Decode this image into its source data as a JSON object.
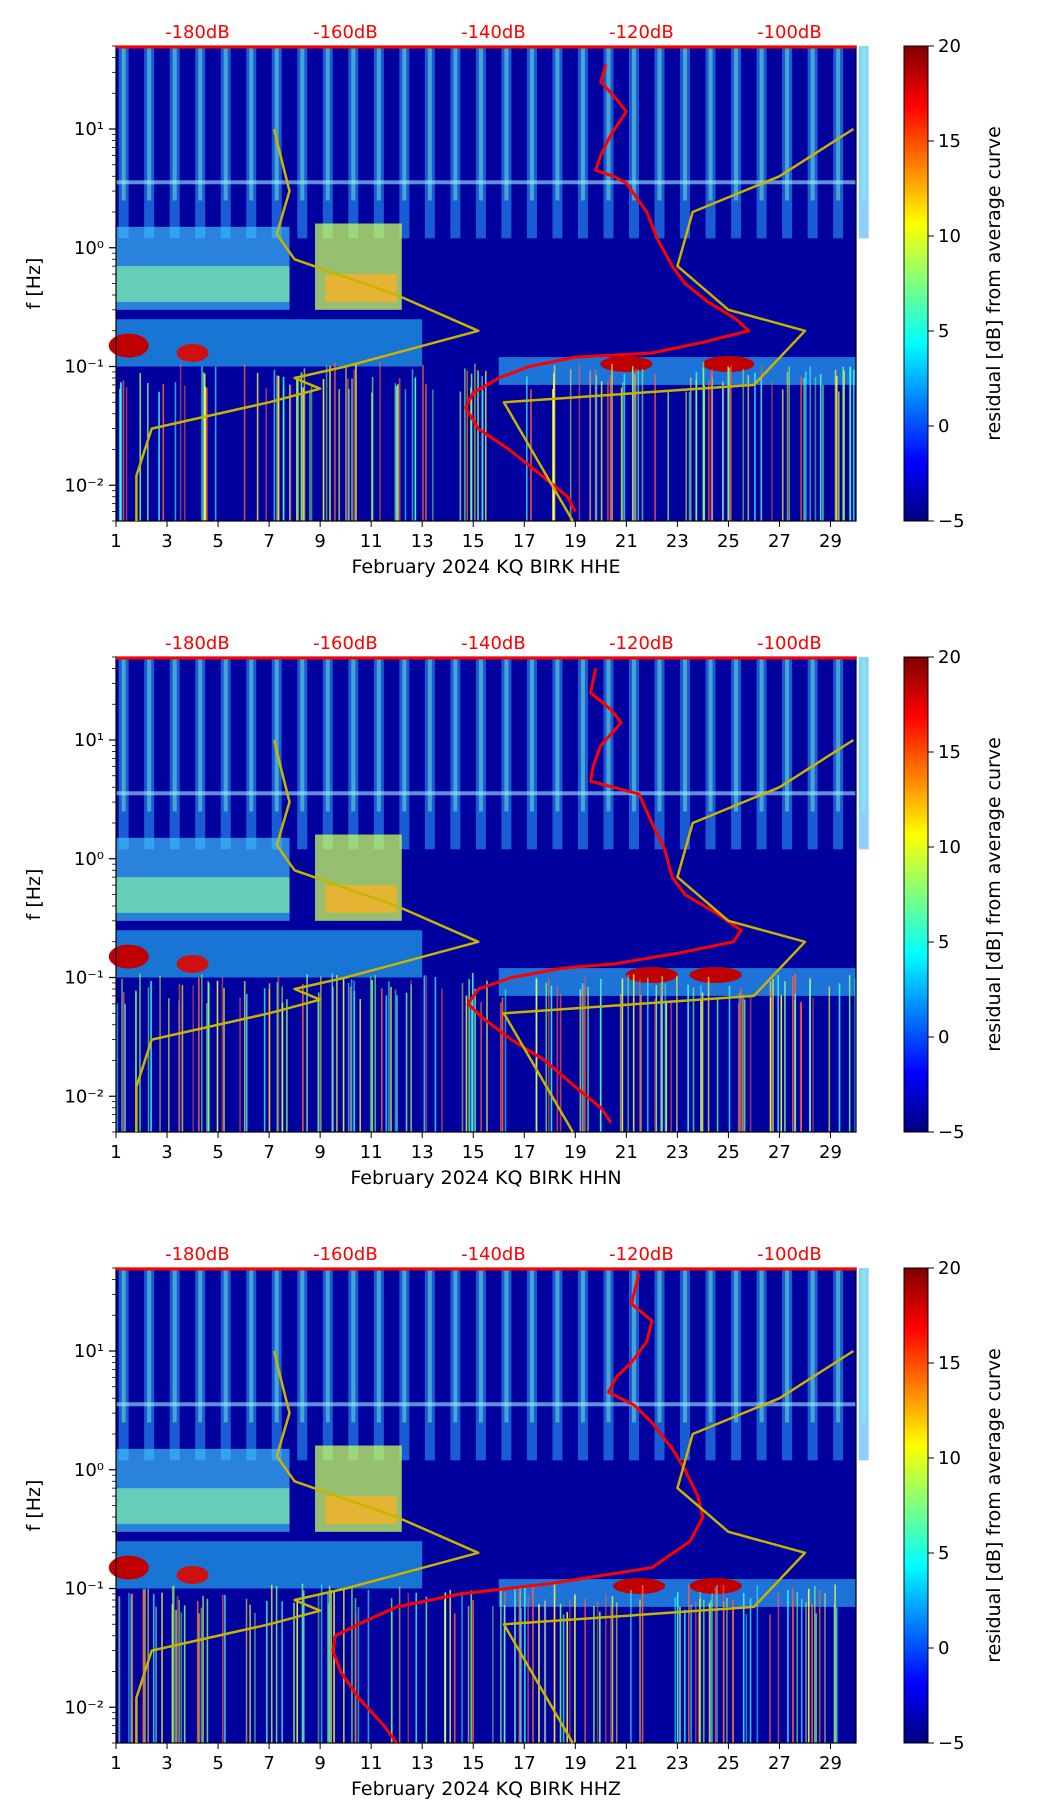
{
  "colors": {
    "pdf_curve": "#ff0000",
    "reference_curve": "#c8b400",
    "colormap": [
      "#00007f",
      "#0000ff",
      "#007fff",
      "#00ffff",
      "#7fff7f",
      "#ffff00",
      "#ff7f00",
      "#ff0000",
      "#7f0000"
    ]
  },
  "colorbar": {
    "label": "residual [dB] from average curve",
    "ticks": [
      "−5",
      "0",
      "5",
      "10",
      "15",
      "20"
    ],
    "min": -5,
    "max": 20
  },
  "chart_data": [
    {
      "type": "heatmap",
      "title": "",
      "xlabel": "February 2024 KQ BIRK  HHE",
      "ylabel": "f [Hz]",
      "yscale": "log",
      "ylim": [
        0.005,
        50
      ],
      "xlim": [
        1,
        30
      ],
      "x_ticks": [
        "1",
        "3",
        "5",
        "7",
        "9",
        "11",
        "13",
        "15",
        "17",
        "19",
        "21",
        "23",
        "25",
        "27",
        "29"
      ],
      "y_ticks": [
        "10⁻²",
        "10⁻¹",
        "10⁰",
        "10¹"
      ],
      "top_axis_labels": [
        "-180dB",
        "-160dB",
        "-140dB",
        "-120dB",
        "-100dB"
      ],
      "colorbar_range": [
        -5,
        20
      ],
      "features": {
        "lowband_start_day": 16,
        "strong_band_days": [
          21,
          25
        ]
      },
      "series": [
        {
          "color_key": "pdf_curve",
          "x": [
            20.2,
            20.0,
            20.6,
            21.0,
            20.4,
            20.0,
            19.8,
            20.5,
            21.0,
            21.8,
            22.2,
            22.8,
            23.3,
            24.2,
            25.3,
            25.8,
            24.0,
            22.0,
            19.0,
            17.2,
            16.0,
            15.0,
            14.7,
            15.2,
            16.4,
            17.7,
            18.7,
            19.0
          ],
          "y": [
            35,
            25,
            18,
            14,
            9,
            6,
            4.5,
            4,
            3.5,
            2,
            1.2,
            0.7,
            0.5,
            0.35,
            0.25,
            0.2,
            0.16,
            0.13,
            0.12,
            0.1,
            0.08,
            0.06,
            0.045,
            0.03,
            0.02,
            0.012,
            0.008,
            0.006
          ]
        },
        {
          "color_key": "reference_curve",
          "x": [
            1.8,
            1.8,
            2.4,
            7.0,
            9.0,
            8.0,
            10.0,
            15.2,
            12.0,
            8.0,
            7.3,
            7.8,
            7.3,
            7.2
          ],
          "y": [
            0.005,
            0.012,
            0.03,
            0.05,
            0.065,
            0.08,
            0.1,
            0.2,
            0.4,
            0.8,
            1.3,
            3,
            8,
            10
          ]
        },
        {
          "color_key": "reference_curve",
          "x": [
            18.9,
            16.2,
            26.0,
            28.0,
            25.0,
            23.0,
            23.6,
            27.0,
            29.9
          ],
          "y": [
            0.005,
            0.05,
            0.07,
            0.2,
            0.3,
            0.7,
            2,
            4,
            10
          ]
        }
      ]
    },
    {
      "type": "heatmap",
      "title": "",
      "xlabel": "February 2024 KQ BIRK  HHN",
      "ylabel": "f [Hz]",
      "yscale": "log",
      "ylim": [
        0.005,
        50
      ],
      "xlim": [
        1,
        30
      ],
      "x_ticks": [
        "1",
        "3",
        "5",
        "7",
        "9",
        "11",
        "13",
        "15",
        "17",
        "19",
        "21",
        "23",
        "25",
        "27",
        "29"
      ],
      "y_ticks": [
        "10⁻²",
        "10⁻¹",
        "10⁰",
        "10¹"
      ],
      "top_axis_labels": [
        "-180dB",
        "-160dB",
        "-140dB",
        "-120dB",
        "-100dB"
      ],
      "colorbar_range": [
        -5,
        20
      ],
      "features": {
        "lowband_start_day": 16,
        "strong_band_days": [
          22,
          24.5
        ]
      },
      "series": [
        {
          "color_key": "pdf_curve",
          "x": [
            19.8,
            19.6,
            20.4,
            20.8,
            20.0,
            19.7,
            19.6,
            20.5,
            21.5,
            22.0,
            22.5,
            22.8,
            23.3,
            24.5,
            25.5,
            25.2,
            23.0,
            20.5,
            18.5,
            16.5,
            15.2,
            14.8,
            15.4,
            16.5,
            17.8,
            19.0,
            20.0,
            20.4
          ],
          "y": [
            40,
            25,
            18,
            14,
            9,
            6,
            4.5,
            4,
            3.5,
            2,
            1.2,
            0.7,
            0.5,
            0.35,
            0.25,
            0.2,
            0.16,
            0.13,
            0.12,
            0.1,
            0.08,
            0.06,
            0.045,
            0.03,
            0.02,
            0.012,
            0.008,
            0.006
          ]
        },
        {
          "color_key": "reference_curve",
          "x": [
            1.8,
            1.8,
            2.4,
            7.0,
            9.0,
            8.0,
            10.0,
            15.2,
            12.0,
            8.0,
            7.3,
            7.8,
            7.3,
            7.2
          ],
          "y": [
            0.005,
            0.012,
            0.03,
            0.05,
            0.065,
            0.08,
            0.1,
            0.2,
            0.4,
            0.8,
            1.3,
            3,
            8,
            10
          ]
        },
        {
          "color_key": "reference_curve",
          "x": [
            18.9,
            16.2,
            26.0,
            28.0,
            25.0,
            23.0,
            23.6,
            27.0,
            29.9
          ],
          "y": [
            0.005,
            0.05,
            0.07,
            0.2,
            0.3,
            0.7,
            2,
            4,
            10
          ]
        }
      ]
    },
    {
      "type": "heatmap",
      "title": "",
      "xlabel": "February 2024 KQ BIRK  HHZ",
      "ylabel": "f [Hz]",
      "yscale": "log",
      "ylim": [
        0.005,
        50
      ],
      "xlim": [
        1,
        30
      ],
      "x_ticks": [
        "1",
        "3",
        "5",
        "7",
        "9",
        "11",
        "13",
        "15",
        "17",
        "19",
        "21",
        "23",
        "25",
        "27",
        "29"
      ],
      "y_ticks": [
        "10⁻²",
        "10⁻¹",
        "10⁰",
        "10¹"
      ],
      "top_axis_labels": [
        "-180dB",
        "-160dB",
        "-140dB",
        "-120dB",
        "-100dB"
      ],
      "colorbar_range": [
        -5,
        20
      ],
      "features": {
        "lowband_start_day": 16,
        "strong_band_days": [
          21.5,
          24.5
        ]
      },
      "series": [
        {
          "color_key": "pdf_curve",
          "x": [
            21.5,
            21.2,
            22.0,
            21.8,
            21.2,
            20.6,
            20.3,
            21.3,
            22.0,
            22.8,
            23.3,
            23.8,
            24.0,
            23.5,
            22.0,
            18.0,
            14.5,
            12.0,
            10.5,
            9.6,
            9.5,
            9.8,
            10.5,
            11.5,
            12.0
          ],
          "y": [
            45,
            25,
            18,
            12,
            8,
            6,
            4.5,
            3.5,
            2.5,
            1.5,
            1.0,
            0.6,
            0.4,
            0.25,
            0.15,
            0.11,
            0.09,
            0.07,
            0.05,
            0.04,
            0.03,
            0.02,
            0.012,
            0.007,
            0.005
          ]
        },
        {
          "color_key": "reference_curve",
          "x": [
            1.8,
            1.8,
            2.4,
            7.0,
            9.0,
            8.0,
            10.0,
            15.2,
            12.0,
            8.0,
            7.3,
            7.8,
            7.3,
            7.2
          ],
          "y": [
            0.005,
            0.012,
            0.03,
            0.05,
            0.065,
            0.08,
            0.1,
            0.2,
            0.4,
            0.8,
            1.3,
            3,
            8,
            10
          ]
        },
        {
          "color_key": "reference_curve",
          "x": [
            18.9,
            16.2,
            26.0,
            28.0,
            25.0,
            23.0,
            23.6,
            27.0,
            29.9
          ],
          "y": [
            0.005,
            0.05,
            0.07,
            0.2,
            0.3,
            0.7,
            2,
            4,
            10
          ]
        }
      ]
    }
  ]
}
